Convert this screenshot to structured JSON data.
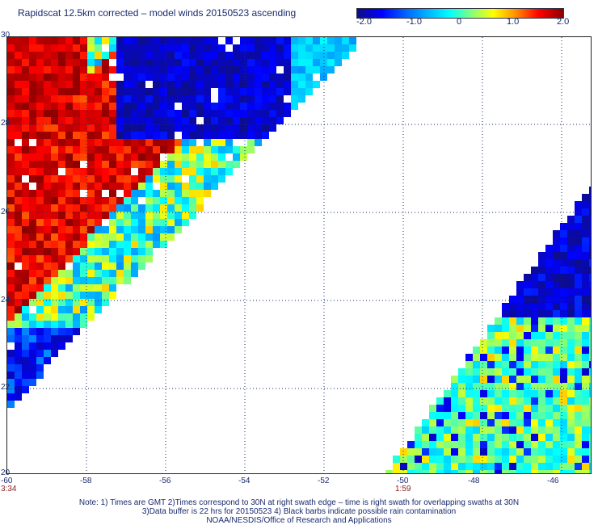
{
  "title": "Rapidscat 12.5km corrected – model winds 20150523 ascending",
  "colorbar": {
    "labels": [
      "-2.0",
      "-1.0",
      "0",
      "1.0",
      "2.0"
    ],
    "min": -2.0,
    "max": 2.0
  },
  "axes": {
    "x_ticks": [
      "-60",
      "-58",
      "-56",
      "-54",
      "-52",
      "-50",
      "-48",
      "-46"
    ],
    "y_ticks": [
      "30",
      "28",
      "26",
      "24",
      "22",
      "20"
    ],
    "lon_range": [
      -60,
      -45.3
    ],
    "lat_range": [
      20,
      30
    ]
  },
  "times": {
    "left": "3:34",
    "mid": "1:59"
  },
  "notes": {
    "line1": "Note: 1) Times are GMT 2)Times correspond to 30N at right swath edge – time is right swath for overlapping swaths at 30N",
    "line2": "3)Data buffer is 22 hrs for 20150523 4) Black barbs indicate possible rain contamination",
    "line3": "NOAA/NESDIS/Office of Research and Applications"
  },
  "chart_data": {
    "type": "heatmap",
    "title": "Rapidscat 12.5km corrected – model winds 20150523 ascending",
    "colorscale_range": [
      -2.0,
      2.0
    ],
    "grid": "dotted",
    "regions": [
      {
        "name": "west swath",
        "lon_range": [
          -60,
          -51.2
        ],
        "lat_range": [
          21.6,
          30
        ],
        "dominant_values": "positive (1.0 to 2.0) in west-central band, negative (-1.0 to -2.0) in north-east part"
      },
      {
        "name": "east swath",
        "lon_range": [
          -50.2,
          -45.3
        ],
        "lat_range": [
          20,
          26.4
        ],
        "dominant_values": "near 0 to slightly negative, strongly negative (-2.0) in north-east part"
      }
    ]
  }
}
